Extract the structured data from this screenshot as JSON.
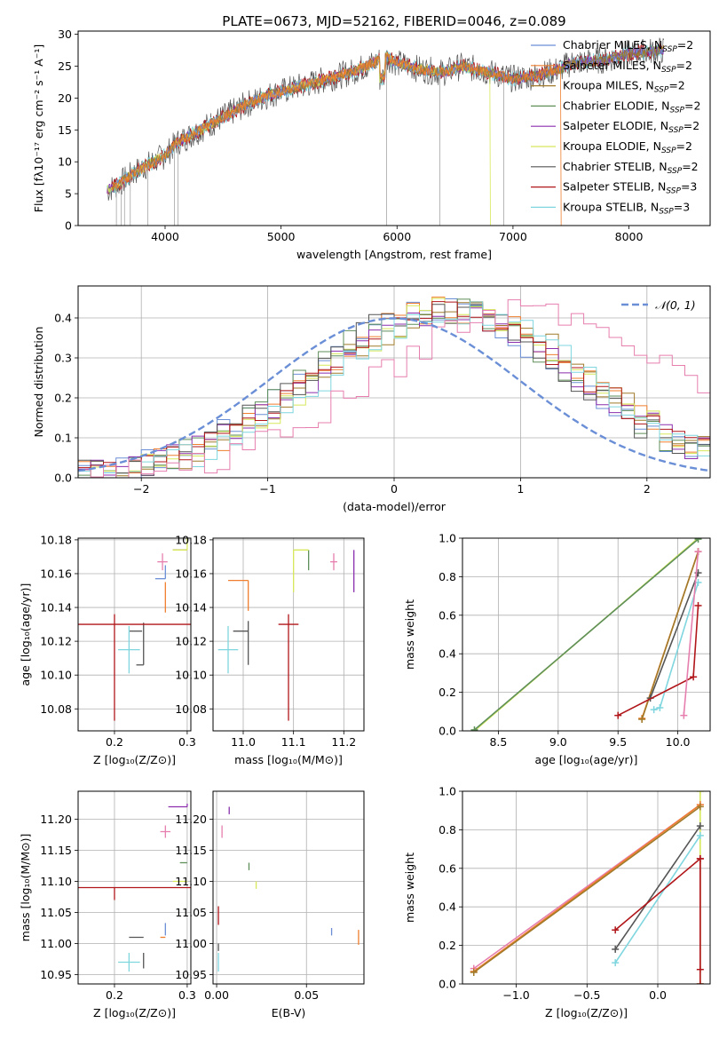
{
  "figure": {
    "title": "PLATE=0673, MJD=52162, FIBERID=0046, z=0.089"
  },
  "colors": {
    "Chabrier MILES": "#6b8fd6",
    "Salpeter MILES": "#ef7e2e",
    "Kroupa MILES": "#a07a2a",
    "Chabrier ELODIE": "#5e8f59",
    "Salpeter ELODIE": "#8b2fae",
    "Kroupa ELODIE": "#d7e85a",
    "Chabrier STELIB": "#555555",
    "Salpeter STELIB": "#b0161a",
    "Kroupa STELIB": "#7fd6df",
    "pink": "#e67fae",
    "normal": "#6b8fd6"
  },
  "chart_data": [
    {
      "id": "spectrum",
      "type": "line",
      "xlabel": "wavelength [Angstrom, rest frame]",
      "ylabel": "Flux [fλ10⁻¹⁷ erg cm⁻² s⁻¹ A⁻¹]",
      "xlim": [
        3250,
        8700
      ],
      "ylim": [
        0,
        30.5
      ],
      "xticks": [
        4000,
        5000,
        6000,
        7000,
        8000
      ],
      "yticks": [
        0,
        5,
        10,
        15,
        20,
        25,
        30
      ],
      "legend_position": "right",
      "legend": [
        {
          "label": "Chabrier MILES, N",
          "sub": "SSP",
          "tail": "=2",
          "color_key": "Chabrier MILES"
        },
        {
          "label": "Salpeter MILES, N",
          "sub": "SSP",
          "tail": "=2",
          "color_key": "Salpeter MILES"
        },
        {
          "label": "Kroupa MILES, N",
          "sub": "SSP",
          "tail": "=2",
          "color_key": "Kroupa MILES"
        },
        {
          "label": "Chabrier ELODIE, N",
          "sub": "SSP",
          "tail": "=2",
          "color_key": "Chabrier ELODIE"
        },
        {
          "label": "Salpeter ELODIE, N",
          "sub": "SSP",
          "tail": "=2",
          "color_key": "Salpeter ELODIE"
        },
        {
          "label": "Kroupa ELODIE, N",
          "sub": "SSP",
          "tail": "=2",
          "color_key": "Kroupa ELODIE"
        },
        {
          "label": "Chabrier STELIB, N",
          "sub": "SSP",
          "tail": "=2",
          "color_key": "Chabrier STELIB"
        },
        {
          "label": "Salpeter STELIB, N",
          "sub": "SSP",
          "tail": "=3",
          "color_key": "Salpeter STELIB"
        },
        {
          "label": "Kroupa STELIB, N",
          "sub": "SSP",
          "tail": "=3",
          "color_key": "Kroupa STELIB"
        }
      ],
      "continuum": [
        [
          3500,
          5.5
        ],
        [
          3600,
          6.5
        ],
        [
          3750,
          8.5
        ],
        [
          3900,
          10
        ],
        [
          4000,
          11
        ],
        [
          4100,
          13
        ],
        [
          4300,
          15
        ],
        [
          4500,
          17
        ],
        [
          4700,
          19
        ],
        [
          4900,
          20.5
        ],
        [
          5000,
          21
        ],
        [
          5200,
          22
        ],
        [
          5400,
          23
        ],
        [
          5600,
          24
        ],
        [
          5800,
          25.5
        ],
        [
          5900,
          26.5
        ],
        [
          6000,
          25.5
        ],
        [
          6200,
          24.5
        ],
        [
          6400,
          24
        ],
        [
          6560,
          25
        ],
        [
          6800,
          24
        ],
        [
          7000,
          23
        ],
        [
          7200,
          23.5
        ],
        [
          7400,
          24.5
        ],
        [
          7500,
          25.5
        ],
        [
          7800,
          26
        ],
        [
          8000,
          27
        ],
        [
          8300,
          27.5
        ]
      ],
      "dropouts": [
        {
          "series": "Kroupa ELODIE",
          "x": 6800
        },
        {
          "series": "Salpeter MILES",
          "x": 7410
        }
      ]
    },
    {
      "id": "residuals",
      "type": "step",
      "xlabel": "(data-model)/error",
      "ylabel": "Normed distribution",
      "xlim": [
        -2.5,
        2.5
      ],
      "ylim": [
        0,
        0.48
      ],
      "xticks": [
        -2,
        -1,
        0,
        1,
        2
      ],
      "yticks": [
        0.0,
        0.1,
        0.2,
        0.3,
        0.4
      ],
      "legend": {
        "label": "𝒩(0, 1)",
        "position": "top-right"
      },
      "normal": {
        "mu": 0,
        "sigma": 1
      }
    },
    {
      "id": "age_vs_Z",
      "type": "errorbar",
      "xlabel": "Z [log₁₀(Z/Z⊙)]",
      "ylabel": "age  [log₁₀(age/yr)]",
      "xlim": [
        0.15,
        0.305
      ],
      "ylim": [
        10.067,
        10.181
      ],
      "xticks": [
        0.2,
        0.3
      ],
      "yticks": [
        10.08,
        10.1,
        10.12,
        10.14,
        10.16,
        10.18
      ],
      "points": [
        {
          "c": "Chabrier MILES",
          "x": 0.27,
          "y": 10.157,
          "ex": [
            0.014,
            0.0
          ],
          "ey": [
            0.0,
            0.008
          ]
        },
        {
          "c": "Salpeter MILES",
          "x": 0.27,
          "y": 10.155,
          "ex": [
            0.0,
            0.0
          ],
          "ey": [
            0.018,
            0.0
          ]
        },
        {
          "c": "Kroupa MILES",
          "x": 0.27,
          "y": 10.158,
          "ex": [
            0.0,
            0.0
          ],
          "ey": [
            0.0,
            0.0
          ]
        },
        {
          "c": "Chabrier ELODIE",
          "x": 0.3,
          "y": 10.174,
          "ex": [
            0.02,
            0.0
          ],
          "ey": [
            0.0,
            0.0
          ]
        },
        {
          "c": "Salpeter ELODIE",
          "x": 0.3,
          "y": 10.174,
          "ex": [
            0.02,
            0.0
          ],
          "ey": [
            0.0,
            0.0
          ]
        },
        {
          "c": "Kroupa ELODIE",
          "x": 0.3,
          "y": 10.174,
          "ex": [
            0.02,
            0.0
          ],
          "ey": [
            0.0,
            0.026
          ]
        },
        {
          "c": "Chabrier STELIB",
          "x": 0.22,
          "y": 10.126,
          "ex": [
            0.0,
            0.018
          ],
          "ey": [
            0.0,
            0.0
          ]
        },
        {
          "c": "Chabrier STELIB",
          "x": 0.24,
          "y": 10.106,
          "ex": [
            0.01,
            0.0
          ],
          "ey": [
            0.0,
            0.025
          ]
        },
        {
          "c": "Salpeter STELIB",
          "x": 0.2,
          "y": 10.13,
          "ex": [
            0.05,
            0.105
          ],
          "ey": [
            0.057,
            0.006
          ]
        },
        {
          "c": "Kroupa STELIB",
          "x": 0.22,
          "y": 10.115,
          "ex": [
            0.015,
            0.015
          ],
          "ey": [
            0.014,
            0.014
          ]
        },
        {
          "c": "pink",
          "x": 0.266,
          "y": 10.167,
          "ex": [
            0.007,
            0.007
          ],
          "ey": [
            0.005,
            0.005
          ]
        }
      ]
    },
    {
      "id": "age_vs_mass",
      "type": "errorbar",
      "xlabel": "mass [log₁₀(M/M⊙)]",
      "ylabel": "",
      "xlim": [
        10.94,
        11.24
      ],
      "ylim": [
        10.067,
        10.181
      ],
      "xticks": [
        11.0,
        11.1,
        11.2
      ],
      "yticks": [
        10.08,
        10.1,
        10.12,
        10.14,
        10.16,
        10.18
      ],
      "points": [
        {
          "c": "Chabrier MILES",
          "x": 11.03,
          "y": 10.156,
          "ex": [
            0.0,
            0.0
          ],
          "ey": [
            0.0,
            0.0
          ]
        },
        {
          "c": "Salpeter MILES",
          "x": 11.01,
          "y": 10.156,
          "ex": [
            0.04,
            0.0
          ],
          "ey": [
            0.018,
            0.0
          ]
        },
        {
          "c": "Chabrier ELODIE",
          "x": 11.13,
          "y": 10.174,
          "ex": [
            0.0,
            0.0
          ],
          "ey": [
            0.012,
            0.0
          ]
        },
        {
          "c": "Salpeter ELODIE",
          "x": 11.22,
          "y": 10.174,
          "ex": [
            0.0,
            0.0
          ],
          "ey": [
            0.025,
            0.0
          ]
        },
        {
          "c": "Kroupa ELODIE",
          "x": 11.1,
          "y": 10.174,
          "ex": [
            0.0,
            0.03
          ],
          "ey": [
            0.025,
            0.0
          ]
        },
        {
          "c": "Chabrier STELIB",
          "x": 11.01,
          "y": 10.126,
          "ex": [
            0.03,
            0.0
          ],
          "ey": [
            0.02,
            0.006
          ]
        },
        {
          "c": "Salpeter STELIB",
          "x": 11.09,
          "y": 10.13,
          "ex": [
            0.02,
            0.02
          ],
          "ey": [
            0.057,
            0.006
          ]
        },
        {
          "c": "Kroupa STELIB",
          "x": 10.97,
          "y": 10.115,
          "ex": [
            0.02,
            0.02
          ],
          "ey": [
            0.014,
            0.014
          ]
        },
        {
          "c": "pink",
          "x": 11.18,
          "y": 10.167,
          "ex": [
            0.007,
            0.007
          ],
          "ey": [
            0.005,
            0.005
          ]
        }
      ]
    },
    {
      "id": "weight_vs_age",
      "type": "line",
      "xlabel": "age  [log₁₀(age/yr)]",
      "ylabel": "mass weight",
      "xlim": [
        8.2,
        10.27
      ],
      "ylim": [
        0,
        1.0
      ],
      "xticks": [
        8.5,
        9.0,
        9.5,
        10.0
      ],
      "yticks": [
        0.0,
        0.2,
        0.4,
        0.6,
        0.8,
        1.0
      ],
      "series": [
        {
          "c": "Kroupa ELODIE",
          "x": [
            8.3,
            10.17
          ],
          "y": [
            0.0,
            1.0
          ]
        },
        {
          "c": "Chabrier ELODIE",
          "x": [
            8.3,
            10.17
          ],
          "y": [
            0.005,
            0.995
          ]
        },
        {
          "c": "Salpeter MILES",
          "x": [
            9.7,
            10.17
          ],
          "y": [
            0.065,
            0.93
          ]
        },
        {
          "c": "Kroupa MILES",
          "x": [
            9.7,
            10.17
          ],
          "y": [
            0.06,
            0.93
          ]
        },
        {
          "c": "Chabrier STELIB",
          "x": [
            9.77,
            10.17
          ],
          "y": [
            0.17,
            0.82
          ]
        },
        {
          "c": "Kroupa STELIB",
          "x": [
            9.8,
            9.85,
            10.17
          ],
          "y": [
            0.11,
            0.12,
            0.77
          ]
        },
        {
          "c": "Salpeter STELIB",
          "x": [
            9.5,
            10.13,
            10.17
          ],
          "y": [
            0.08,
            0.28,
            0.65
          ]
        },
        {
          "c": "pink",
          "x": [
            10.05,
            10.17
          ],
          "y": [
            0.08,
            0.93
          ]
        }
      ]
    },
    {
      "id": "mass_vs_Z",
      "type": "errorbar",
      "xlabel": "Z [log₁₀(Z/Z⊙)]",
      "ylabel": "mass [log₁₀(M/M⊙)]",
      "xlim": [
        0.15,
        0.305
      ],
      "ylim": [
        10.935,
        11.245
      ],
      "xticks": [
        0.2,
        0.3
      ],
      "yticks": [
        10.95,
        11.0,
        11.05,
        11.1,
        11.15,
        11.2
      ],
      "points": [
        {
          "c": "Salpeter ELODIE",
          "x": 0.3,
          "y": 11.22,
          "ex": [
            0.026,
            0.0
          ],
          "ey": [
            0.0,
            0.005
          ]
        },
        {
          "c": "pink",
          "x": 0.27,
          "y": 11.18,
          "ex": [
            0.007,
            0.007
          ],
          "ey": [
            0.01,
            0.01
          ]
        },
        {
          "c": "Chabrier ELODIE",
          "x": 0.3,
          "y": 11.13,
          "ex": [
            0.01,
            0.0
          ],
          "ey": [
            0.0,
            0.0
          ]
        },
        {
          "c": "Kroupa ELODIE",
          "x": 0.3,
          "y": 11.1,
          "ex": [
            0.02,
            0.0
          ],
          "ey": [
            0.0,
            0.0
          ]
        },
        {
          "c": "Salpeter STELIB",
          "x": 0.2,
          "y": 11.09,
          "ex": [
            0.05,
            0.105
          ],
          "ey": [
            0.02,
            0.0
          ]
        },
        {
          "c": "Chabrier MILES",
          "x": 0.27,
          "y": 11.033,
          "ex": [
            0.0,
            0.0
          ],
          "ey": [
            0.02,
            0.0
          ]
        },
        {
          "c": "Salpeter MILES",
          "x": 0.27,
          "y": 11.01,
          "ex": [
            0.007,
            0.0
          ],
          "ey": [
            0.0,
            0.0
          ]
        },
        {
          "c": "Kroupa MILES",
          "x": 0.27,
          "y": 11.01,
          "ex": [
            0.0,
            0.0
          ],
          "ey": [
            0.0,
            0.0
          ]
        },
        {
          "c": "Chabrier STELIB",
          "x": 0.22,
          "y": 11.01,
          "ex": [
            0.0,
            0.02
          ],
          "ey": [
            0.0,
            0.0
          ]
        },
        {
          "c": "Chabrier STELIB",
          "x": 0.24,
          "y": 10.985,
          "ex": [
            0.0,
            0.0
          ],
          "ey": [
            0.025,
            0.0
          ]
        },
        {
          "c": "Kroupa STELIB",
          "x": 0.22,
          "y": 10.97,
          "ex": [
            0.015,
            0.015
          ],
          "ey": [
            0.015,
            0.015
          ]
        }
      ]
    },
    {
      "id": "mass_vs_ebv",
      "type": "errorbar",
      "xlabel": "E(B-V)",
      "ylabel": "",
      "xlim": [
        -0.002,
        0.082
      ],
      "ylim": [
        10.935,
        11.245
      ],
      "xticks": [
        0.0,
        0.05
      ],
      "yticks": [
        10.95,
        11.0,
        11.05,
        11.1,
        11.15,
        11.2
      ],
      "points": [
        {
          "c": "Salpeter ELODIE",
          "x": 0.007,
          "y": 11.22,
          "ex": [
            0.0,
            0.0
          ],
          "ey": [
            0.012,
            0.0
          ]
        },
        {
          "c": "pink",
          "x": 0.003,
          "y": 11.18,
          "ex": [
            0.0,
            0.0
          ],
          "ey": [
            0.01,
            0.01
          ]
        },
        {
          "c": "Chabrier ELODIE",
          "x": 0.018,
          "y": 11.13,
          "ex": [
            0.0,
            0.0
          ],
          "ey": [
            0.012,
            0.0
          ]
        },
        {
          "c": "Kroupa ELODIE",
          "x": 0.022,
          "y": 11.1,
          "ex": [
            0.0,
            0.0
          ],
          "ey": [
            0.012,
            0.0
          ]
        },
        {
          "c": "Salpeter STELIB",
          "x": 0.001,
          "y": 11.06,
          "ex": [
            0.0,
            0.0
          ],
          "ey": [
            0.03,
            0.0
          ]
        },
        {
          "c": "Chabrier MILES",
          "x": 0.064,
          "y": 11.025,
          "ex": [
            0.0,
            0.0
          ],
          "ey": [
            0.012,
            0.0
          ]
        },
        {
          "c": "Salpeter MILES",
          "x": 0.079,
          "y": 11.01,
          "ex": [
            0.0,
            0.0
          ],
          "ey": [
            0.012,
            0.012
          ]
        },
        {
          "c": "Chabrier STELIB",
          "x": 0.001,
          "y": 11.0,
          "ex": [
            0.0,
            0.0
          ],
          "ey": [
            0.012,
            0.0
          ]
        },
        {
          "c": "Kroupa STELIB",
          "x": 0.001,
          "y": 10.97,
          "ex": [
            0.0,
            0.0
          ],
          "ey": [
            0.015,
            0.015
          ]
        }
      ]
    },
    {
      "id": "weight_vs_Z",
      "type": "line",
      "xlabel": "Z [log₁₀(Z/Z⊙)]",
      "ylabel": "mass weight",
      "xlim": [
        -1.38,
        0.37
      ],
      "ylim": [
        0,
        1.0
      ],
      "xticks": [
        -1.0,
        -0.5,
        0.0
      ],
      "yticks": [
        0.0,
        0.2,
        0.4,
        0.6,
        0.8,
        1.0
      ],
      "series": [
        {
          "c": "Kroupa ELODIE",
          "x": [
            0.3,
            0.3
          ],
          "y": [
            0.0,
            1.0
          ]
        },
        {
          "c": "pink",
          "x": [
            -1.3,
            0.3
          ],
          "y": [
            0.08,
            0.93
          ]
        },
        {
          "c": "Salpeter MILES",
          "x": [
            -1.3,
            0.3
          ],
          "y": [
            0.065,
            0.93
          ]
        },
        {
          "c": "Kroupa MILES",
          "x": [
            -1.3,
            0.3
          ],
          "y": [
            0.06,
            0.92
          ]
        },
        {
          "c": "Chabrier STELIB",
          "x": [
            -0.3,
            0.3
          ],
          "y": [
            0.18,
            0.82
          ]
        },
        {
          "c": "Kroupa STELIB",
          "x": [
            -0.3,
            0.3
          ],
          "y": [
            0.11,
            0.77
          ]
        },
        {
          "c": "Salpeter STELIB",
          "x": [
            -0.3,
            0.3,
            0.3
          ],
          "y": [
            0.28,
            0.65,
            0.075
          ]
        },
        {
          "c": "Salpeter STELIB",
          "x": [
            0.3,
            0.3
          ],
          "y": [
            0.0,
            0.65
          ]
        }
      ]
    }
  ]
}
